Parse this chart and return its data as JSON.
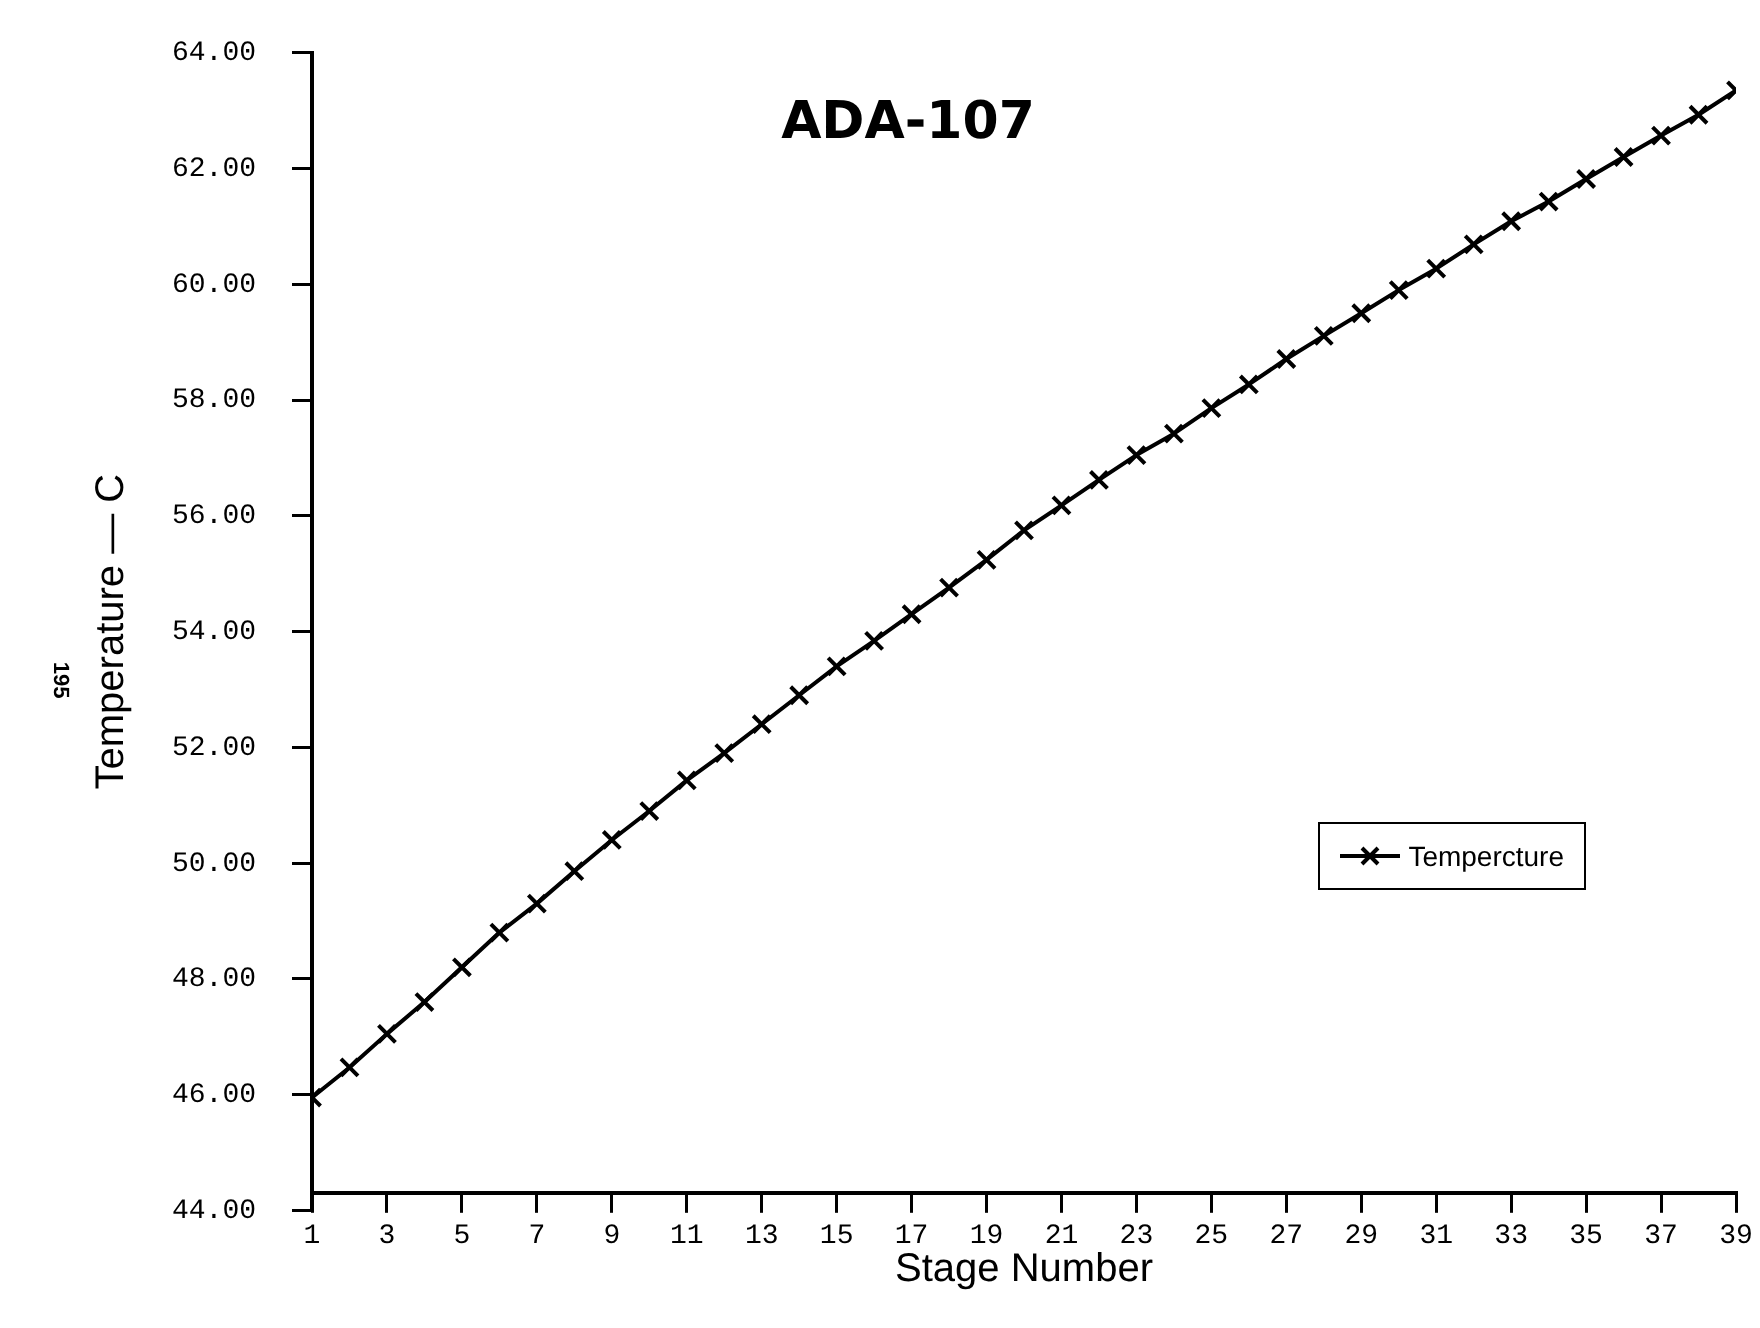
{
  "chart_data": {
    "type": "line",
    "title": "ADA-107",
    "xlabel": "Stage Number",
    "ylabel": "Temperature — C",
    "annotations": [
      "195"
    ],
    "x": [
      1,
      2,
      3,
      4,
      5,
      6,
      7,
      8,
      9,
      10,
      11,
      12,
      13,
      14,
      15,
      16,
      17,
      18,
      19,
      20,
      21,
      22,
      23,
      24,
      25,
      26,
      27,
      28,
      29,
      30,
      31,
      32,
      33,
      34,
      35,
      36,
      37,
      38,
      39
    ],
    "series": [
      {
        "name": "Tempercture",
        "color": "#000000",
        "values": [
          45.95,
          46.47,
          47.05,
          47.6,
          48.2,
          48.8,
          49.3,
          49.86,
          50.4,
          50.9,
          51.43,
          51.9,
          52.4,
          52.9,
          53.4,
          53.84,
          54.3,
          54.76,
          55.24,
          55.75,
          56.18,
          56.62,
          57.05,
          57.42,
          57.86,
          58.27,
          58.71,
          59.11,
          59.5,
          59.9,
          60.27,
          60.69,
          61.09,
          61.43,
          61.82,
          62.2,
          62.57,
          62.93,
          63.35
        ]
      }
    ],
    "xlim": [
      1,
      39
    ],
    "xticks": [
      1,
      3,
      5,
      7,
      9,
      11,
      13,
      15,
      17,
      19,
      21,
      23,
      25,
      27,
      29,
      31,
      33,
      35,
      37,
      39
    ],
    "ylim": [
      44,
      64
    ],
    "yticks": [
      {
        "value": 44,
        "label": "44.00"
      },
      {
        "value": 46,
        "label": "46.00"
      },
      {
        "value": 48,
        "label": "48.00"
      },
      {
        "value": 50,
        "label": "50.00"
      },
      {
        "value": 52,
        "label": "52.00"
      },
      {
        "value": 54,
        "label": "54.00"
      },
      {
        "value": 56,
        "label": "56.00"
      },
      {
        "value": 58,
        "label": "58.00"
      },
      {
        "value": 60,
        "label": "60.00"
      },
      {
        "value": 62,
        "label": "62.00"
      },
      {
        "value": 64,
        "label": "64.00"
      }
    ],
    "grid": false,
    "legend": "right",
    "marker": "cross",
    "line_style": "solid"
  }
}
